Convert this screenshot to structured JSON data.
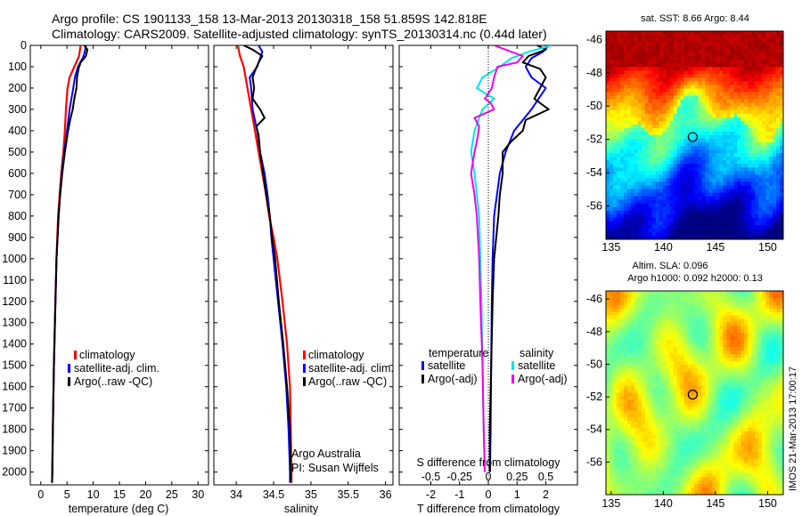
{
  "header": {
    "line1": "Argo profile: CS 1901133_158 13-Mar-2013 20130318_158 51.859S 142.818E",
    "line2": "Climatology: CARS2009. Satellite-adjusted climatology: synTS_20130314.nc (0.44d later)"
  },
  "panel_titles": {
    "sst": "sat. SST: 8.66 Argo: 8.44",
    "sla_line1": "Altim. SLA: 0.096",
    "sla_line2": "Argo h1000: 0.092 h2000: 0.13"
  },
  "annotations": {
    "argo_australia": "Argo Australia",
    "pi": "PI: Susan Wijffels",
    "imos_stamp": "IMOS 21-Mar-2013 17:00:17"
  },
  "legends": {
    "profile": [
      "climatology",
      "satellite-adj. clim.",
      "Argo(..raw -QC)"
    ],
    "diff_headers": [
      "temperature",
      "salinity"
    ],
    "diff_left": [
      "satellite",
      "Argo(-adj)"
    ],
    "diff_right": [
      "satellite",
      "Argo(-adj)"
    ]
  },
  "colors": {
    "climatology": "#ff0000",
    "satellite": "#0000ff",
    "argo": "#000000",
    "sat_salinity": "#00e5ee",
    "argo_salinity": "#ee00ee"
  },
  "chart_data": [
    {
      "type": "line",
      "xlabel": "temperature (deg C)",
      "ylabel": "",
      "xlim": [
        -2,
        32
      ],
      "ylim": [
        2060,
        0
      ],
      "xticks": [
        "0",
        "5",
        "10",
        "15",
        "20",
        "25",
        "30"
      ],
      "yticks": [
        "0",
        "100",
        "200",
        "300",
        "400",
        "500",
        "600",
        "700",
        "800",
        "900",
        "1000",
        "1100",
        "1200",
        "1300",
        "1400",
        "1500",
        "1600",
        "1700",
        "1800",
        "1900",
        "2000"
      ],
      "series": [
        {
          "name": "climatology",
          "color": "#ff0000",
          "depth": [
            0,
            50,
            100,
            150,
            200,
            300,
            400,
            500,
            600,
            700,
            800,
            1000,
            1200,
            1500,
            1800,
            2000,
            2050
          ],
          "values": [
            7.6,
            7.3,
            6.4,
            5.5,
            5.1,
            4.8,
            4.6,
            4.3,
            3.9,
            3.6,
            3.3,
            3.0,
            2.8,
            2.5,
            2.3,
            2.2,
            2.15
          ]
        },
        {
          "name": "satellite-adj. clim.",
          "color": "#0000ff",
          "depth": [
            0,
            30,
            60,
            100,
            150,
            200,
            300,
            400,
            500,
            600,
            700,
            800,
            1000,
            1200,
            1500,
            1800,
            2000,
            2050
          ],
          "values": [
            8.6,
            8.4,
            8.0,
            7.1,
            6.5,
            6.2,
            5.5,
            5.0,
            4.5,
            4.0,
            3.7,
            3.4,
            3.0,
            2.8,
            2.5,
            2.3,
            2.2,
            2.15
          ]
        },
        {
          "name": "Argo(..raw -QC)",
          "color": "#000000",
          "depth": [
            0,
            20,
            50,
            80,
            110,
            150,
            200,
            250,
            300,
            350,
            400,
            450,
            500,
            600,
            700,
            800,
            1000,
            1200,
            1500,
            1800,
            2000,
            2050
          ],
          "values": [
            8.3,
            8.9,
            8.6,
            7.6,
            7.2,
            6.9,
            6.8,
            6.4,
            6.1,
            5.6,
            5.2,
            4.9,
            4.6,
            4.1,
            3.7,
            3.4,
            3.0,
            2.8,
            2.5,
            2.3,
            2.2,
            2.15
          ]
        }
      ]
    },
    {
      "type": "line",
      "xlabel": "salinity",
      "ylabel": "",
      "xlim": [
        33.7,
        36.1
      ],
      "ylim": [
        2060,
        0
      ],
      "xticks": [
        "34",
        "34.5",
        "35",
        "35.5",
        "36"
      ],
      "series": [
        {
          "name": "climatology",
          "color": "#ff0000",
          "depth": [
            0,
            50,
            100,
            200,
            300,
            400,
            500,
            600,
            700,
            800,
            900,
            1000,
            1200,
            1400,
            1600,
            1800,
            2000,
            2050
          ],
          "values": [
            34.02,
            34.05,
            34.1,
            34.15,
            34.2,
            34.25,
            34.3,
            34.35,
            34.4,
            34.44,
            34.5,
            34.55,
            34.62,
            34.68,
            34.72,
            34.73,
            34.74,
            34.74
          ]
        },
        {
          "name": "satellite-adj. clim.",
          "color": "#0000ff",
          "depth": [
            0,
            30,
            60,
            100,
            150,
            200,
            300,
            400,
            500,
            600,
            700,
            800,
            900,
            1000,
            1200,
            1400,
            1600,
            1800,
            2000,
            2050
          ],
          "values": [
            34.3,
            34.35,
            34.32,
            34.28,
            34.18,
            34.2,
            34.22,
            34.28,
            34.32,
            34.38,
            34.42,
            34.45,
            34.47,
            34.5,
            34.56,
            34.62,
            34.67,
            34.7,
            34.72,
            34.72
          ]
        },
        {
          "name": "Argo(..raw -QC)",
          "color": "#000000",
          "depth": [
            0,
            20,
            50,
            80,
            120,
            150,
            200,
            250,
            300,
            340,
            380,
            420,
            500,
            600,
            700,
            800,
            900,
            1000,
            1200,
            1400,
            1600,
            1800,
            2000,
            2050
          ],
          "values": [
            34.1,
            34.22,
            34.35,
            34.3,
            34.25,
            34.22,
            34.24,
            34.22,
            34.32,
            34.38,
            34.27,
            34.3,
            34.32,
            34.36,
            34.4,
            34.45,
            34.48,
            34.52,
            34.57,
            34.63,
            34.68,
            34.72,
            34.73,
            34.73
          ]
        }
      ]
    },
    {
      "type": "line",
      "xlabel": "T difference from climatology",
      "x2label": "S difference from climatology",
      "xlim": [
        -3.1,
        3.1
      ],
      "x2lim": [
        -0.775,
        0.775
      ],
      "ylim": [
        2060,
        0
      ],
      "xticks": [
        "-2",
        "-1",
        "0",
        "1",
        "2"
      ],
      "x2ticks": [
        "-0.5",
        "-0.25",
        "0",
        "0.25",
        "0.5"
      ],
      "series": [
        {
          "name": "temperature satellite",
          "color": "#0000ff",
          "depth": [
            0,
            30,
            60,
            100,
            150,
            200,
            300,
            400,
            500,
            600,
            700,
            800,
            1000,
            1200,
            1500,
            1800,
            2000
          ],
          "values": [
            2.1,
            1.9,
            1.5,
            1.3,
            1.5,
            2.0,
            1.5,
            0.9,
            0.6,
            0.4,
            0.3,
            0.2,
            0.15,
            0.12,
            0.1,
            0.08,
            0.06
          ]
        },
        {
          "name": "temperature Argo(-adj)",
          "color": "#000000",
          "depth": [
            0,
            20,
            50,
            80,
            110,
            150,
            200,
            250,
            300,
            350,
            400,
            450,
            500,
            600,
            700,
            800,
            1000,
            1200,
            1500,
            1800,
            2000
          ],
          "values": [
            1.7,
            2.0,
            1.4,
            1.2,
            1.8,
            2.0,
            1.8,
            1.6,
            2.1,
            1.3,
            1.2,
            0.8,
            0.5,
            0.5,
            0.4,
            0.35,
            0.2,
            0.15,
            0.1,
            0.05,
            0.05
          ]
        },
        {
          "name": "salinity satellite",
          "color": "#00e5ee",
          "depth": [
            0,
            30,
            60,
            100,
            150,
            200,
            250,
            300,
            400,
            500,
            600,
            700,
            800,
            1000,
            1200,
            1500,
            1800,
            2000
          ],
          "values": [
            0.55,
            0.35,
            0.2,
            0.1,
            -0.05,
            -0.1,
            0.05,
            -0.05,
            -0.12,
            -0.15,
            -0.12,
            -0.1,
            -0.08,
            -0.07,
            -0.06,
            -0.05,
            -0.04,
            -0.03
          ]
        },
        {
          "name": "salinity Argo(-adj)",
          "color": "#ee00ee",
          "depth": [
            0,
            20,
            50,
            80,
            100,
            150,
            200,
            250,
            270,
            300,
            340,
            380,
            420,
            450,
            500,
            600,
            700,
            800,
            1000,
            1200,
            1500,
            1800,
            2000
          ],
          "values": [
            0.05,
            0.15,
            0.3,
            0.25,
            0.08,
            0.05,
            0.03,
            -0.03,
            0.02,
            0.05,
            -0.12,
            -0.08,
            -0.09,
            -0.1,
            -0.12,
            -0.15,
            -0.12,
            -0.1,
            -0.08,
            -0.07,
            -0.05,
            -0.04,
            -0.03
          ]
        }
      ]
    },
    {
      "type": "heatmap",
      "title": "sat. SST: 8.66 Argo: 8.44",
      "xlim": [
        134.5,
        151.5
      ],
      "ylim": [
        -58,
        -45.5
      ],
      "xticks": [
        "135",
        "140",
        "145",
        "150"
      ],
      "yticks": [
        "-46",
        "-48",
        "-50",
        "-52",
        "-54",
        "-56"
      ],
      "colormap": "jet",
      "argo_position": {
        "lon": 142.818,
        "lat": -51.859
      }
    },
    {
      "type": "heatmap",
      "title": "Altim. SLA: 0.096 / Argo h1000: 0.092 h2000: 0.13",
      "xlim": [
        134.5,
        151.5
      ],
      "ylim": [
        -58,
        -45.5
      ],
      "xticks": [
        "135",
        "140",
        "145",
        "150"
      ],
      "yticks": [
        "-46",
        "-48",
        "-50",
        "-52",
        "-54",
        "-56"
      ],
      "colormap": "jet",
      "argo_position": {
        "lon": 142.818,
        "lat": -51.859
      }
    }
  ]
}
